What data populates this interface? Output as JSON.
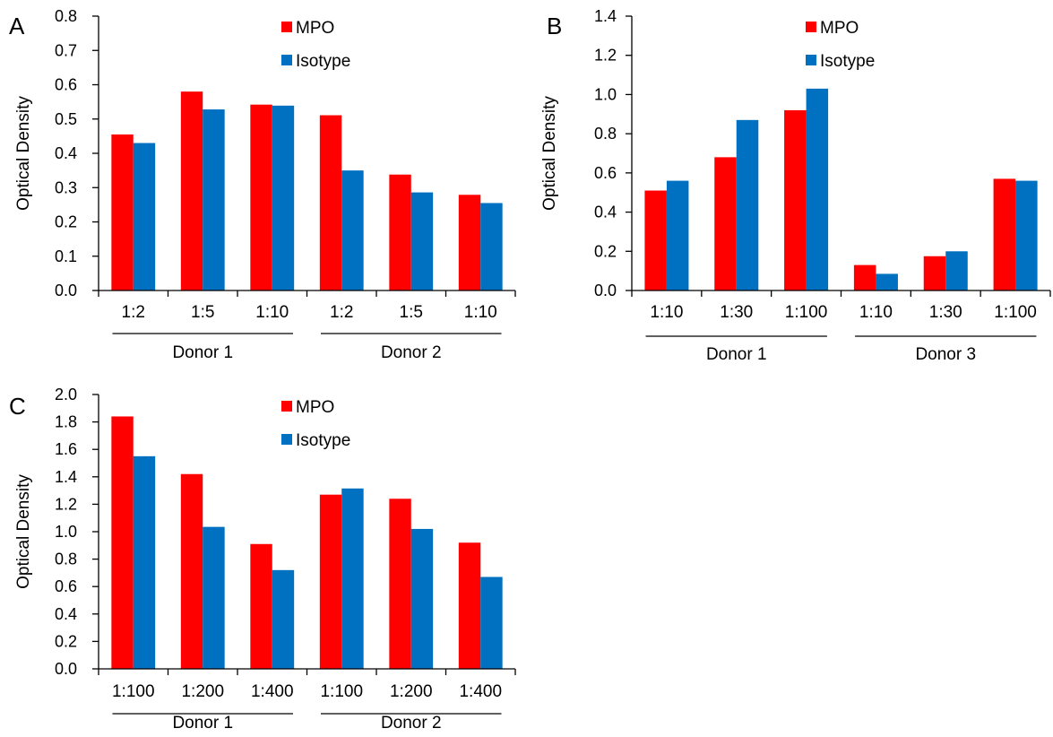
{
  "chart_data": [
    {
      "panel": "A",
      "type": "bar",
      "ylabel": "Optical Density",
      "ylim": [
        0,
        0.8
      ],
      "yticks": [
        "0.0",
        "0.1",
        "0.2",
        "0.3",
        "0.4",
        "0.5",
        "0.6",
        "0.7",
        "0.8"
      ],
      "categories": [
        "1:2",
        "1:5",
        "1:10",
        "1:2",
        "1:5",
        "1:10"
      ],
      "groups": [
        {
          "label": "Donor 1",
          "span": [
            0,
            2
          ]
        },
        {
          "label": "Donor 2",
          "span": [
            3,
            5
          ]
        }
      ],
      "series": [
        {
          "name": "MPO",
          "color": "#ff0000",
          "values": [
            0.455,
            0.58,
            0.542,
            0.511,
            0.338,
            0.279
          ]
        },
        {
          "name": "Isotype",
          "color": "#0070c0",
          "values": [
            0.43,
            0.528,
            0.539,
            0.35,
            0.286,
            0.255
          ]
        }
      ],
      "legend": "top-center"
    },
    {
      "panel": "B",
      "type": "bar",
      "ylabel": "Optical Density",
      "ylim": [
        0,
        1.4
      ],
      "yticks": [
        "0.0",
        "0.2",
        "0.4",
        "0.6",
        "0.8",
        "1.0",
        "1.2",
        "1.4"
      ],
      "categories": [
        "1:10",
        "1:30",
        "1:100",
        "1:10",
        "1:30",
        "1:100"
      ],
      "groups": [
        {
          "label": "Donor 1",
          "span": [
            0,
            2
          ]
        },
        {
          "label": "Donor 3",
          "span": [
            3,
            5
          ]
        }
      ],
      "series": [
        {
          "name": "MPO",
          "color": "#ff0000",
          "values": [
            0.51,
            0.68,
            0.92,
            0.13,
            0.175,
            0.57
          ]
        },
        {
          "name": "Isotype",
          "color": "#0070c0",
          "values": [
            0.56,
            0.87,
            1.03,
            0.085,
            0.2,
            0.56
          ]
        }
      ],
      "legend": "top-center"
    },
    {
      "panel": "C",
      "type": "bar",
      "ylabel": "Optical Density",
      "ylim": [
        0,
        2.0
      ],
      "yticks": [
        "0.0",
        "0.2",
        "0.4",
        "0.6",
        "0.8",
        "1.0",
        "1.2",
        "1.4",
        "1.6",
        "1.8",
        "2.0"
      ],
      "categories": [
        "1:100",
        "1:200",
        "1:400",
        "1:100",
        "1:200",
        "1:400"
      ],
      "groups": [
        {
          "label": "Donor 1",
          "span": [
            0,
            2
          ]
        },
        {
          "label": "Donor 2",
          "span": [
            3,
            5
          ]
        }
      ],
      "series": [
        {
          "name": "MPO",
          "color": "#ff0000",
          "values": [
            1.84,
            1.42,
            0.91,
            1.27,
            1.24,
            0.92
          ]
        },
        {
          "name": "Isotype",
          "color": "#0070c0",
          "values": [
            1.55,
            1.035,
            0.72,
            1.315,
            1.02,
            0.67
          ]
        }
      ],
      "legend": "top-center"
    }
  ]
}
